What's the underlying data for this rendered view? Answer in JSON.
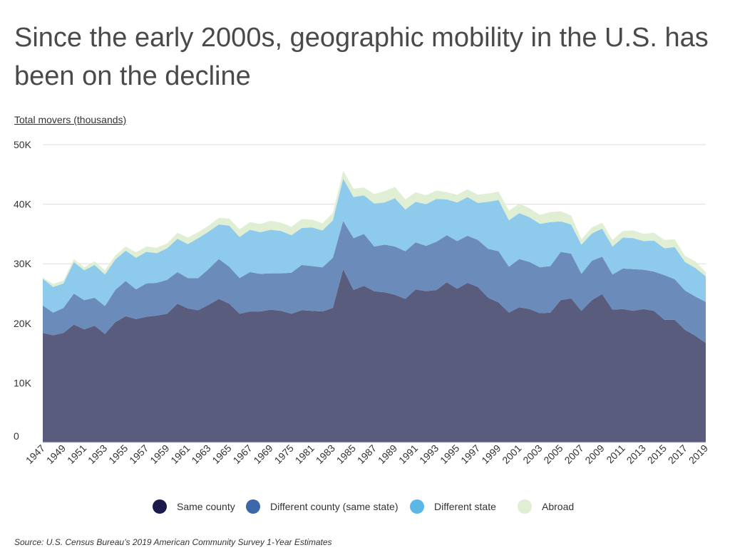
{
  "title": "Since the early 2000s, geographic mobility in the U.S. has been on the decline",
  "ylabel": "Total movers (thousands)",
  "source": "Source:  U.S. Census Bureau’s 2019 American Community Survey 1-Year Estimates",
  "chart_data": {
    "type": "area",
    "stacked": true,
    "ylim": [
      0,
      50000
    ],
    "yticks": [
      0,
      10000,
      20000,
      30000,
      40000,
      50000
    ],
    "ytick_labels": [
      "0",
      "10K",
      "20K",
      "30K",
      "40K",
      "50K"
    ],
    "xtick_labels": [
      "1947",
      "1949",
      "1951",
      "1953",
      "1955",
      "1957",
      "1959",
      "1961",
      "1963",
      "1965",
      "1967",
      "1969",
      "1975",
      "1981",
      "1983",
      "1985",
      "1987",
      "1989",
      "1991",
      "1993",
      "1995",
      "1997",
      "1999",
      "2001",
      "2003",
      "2005",
      "2007",
      "2009",
      "2011",
      "2013",
      "2015",
      "2017",
      "2019"
    ],
    "x": [
      "1947",
      "1948",
      "1949",
      "1950",
      "1951",
      "1952",
      "1953",
      "1954",
      "1955",
      "1956",
      "1957",
      "1958",
      "1959",
      "1960",
      "1961",
      "1962",
      "1963",
      "1964",
      "1965",
      "1966",
      "1967",
      "1968",
      "1969",
      "1970",
      "1975",
      "1980",
      "1981",
      "1982",
      "1983",
      "1984",
      "1985",
      "1986",
      "1987",
      "1988",
      "1989",
      "1990",
      "1991",
      "1992",
      "1993",
      "1994",
      "1995",
      "1996",
      "1997",
      "1998",
      "1999",
      "2000",
      "2001",
      "2002",
      "2003",
      "2004",
      "2005",
      "2006",
      "2007",
      "2008",
      "2009",
      "2010",
      "2011",
      "2012",
      "2013",
      "2014",
      "2015",
      "2016",
      "2017",
      "2018",
      "2019"
    ],
    "series": [
      {
        "name": "Same county",
        "color": "#5a5c7e",
        "values": [
          18400,
          18000,
          18400,
          19800,
          19000,
          19600,
          18200,
          20200,
          21200,
          20700,
          21100,
          21300,
          21600,
          23300,
          22500,
          22200,
          23100,
          24100,
          23300,
          21600,
          22000,
          22000,
          22300,
          22100,
          21600,
          22200,
          22100,
          22000,
          22600,
          29100,
          25600,
          26300,
          25400,
          25200,
          24800,
          24100,
          25700,
          25400,
          25600,
          26900,
          25800,
          26800,
          26100,
          24300,
          23500,
          21800,
          22700,
          22400,
          21700,
          21800,
          23900,
          24200,
          22100,
          23900,
          24900,
          22300,
          22400,
          22100,
          22400,
          22100,
          20600,
          20600,
          18900,
          17900,
          16700
        ]
      },
      {
        "name": "Different county (same state)",
        "color": "#6b8cba",
        "values": [
          4600,
          3800,
          4200,
          5200,
          4900,
          4700,
          4700,
          5400,
          5900,
          5000,
          5600,
          5500,
          5700,
          5300,
          5100,
          5400,
          6000,
          6700,
          6200,
          6000,
          6600,
          6300,
          6100,
          6300,
          6900,
          7600,
          7500,
          7400,
          8400,
          8100,
          8700,
          8700,
          7500,
          8000,
          8100,
          8000,
          7900,
          7600,
          8100,
          7900,
          8000,
          7900,
          7900,
          8200,
          8600,
          7700,
          8100,
          7900,
          7700,
          7800,
          8100,
          7500,
          6200,
          6600,
          6300,
          5900,
          6800,
          7000,
          6600,
          6600,
          7500,
          6800,
          6600,
          6600,
          6900
        ]
      },
      {
        "name": "Different state",
        "color": "#8dcaec",
        "values": [
          4500,
          4300,
          4100,
          5300,
          5000,
          5500,
          5300,
          5100,
          5100,
          5300,
          5300,
          5000,
          5300,
          5600,
          5700,
          6700,
          6300,
          5800,
          6900,
          6900,
          7100,
          7000,
          7300,
          7100,
          6300,
          6200,
          6500,
          6200,
          6300,
          7100,
          6900,
          6500,
          7200,
          7100,
          8100,
          7000,
          6800,
          7000,
          7200,
          6000,
          6500,
          6500,
          6200,
          7900,
          8600,
          7800,
          7700,
          7500,
          7300,
          7400,
          5100,
          4900,
          4900,
          4600,
          4700,
          4700,
          5200,
          5200,
          4800,
          5200,
          4500,
          5400,
          4800,
          4800,
          4300
        ]
      },
      {
        "name": "Abroad",
        "color": "#e0efd3",
        "values": [
          200,
          500,
          500,
          500,
          500,
          600,
          700,
          700,
          700,
          900,
          900,
          900,
          800,
          1000,
          1100,
          1000,
          1000,
          1100,
          1200,
          1300,
          1300,
          1400,
          1500,
          1400,
          1400,
          1500,
          1300,
          1200,
          1200,
          1300,
          1400,
          1300,
          1600,
          1900,
          1900,
          1700,
          1600,
          1500,
          1400,
          1200,
          1300,
          1300,
          1400,
          1400,
          1400,
          1600,
          1600,
          1500,
          1500,
          1700,
          1700,
          1500,
          900,
          1000,
          1000,
          1100,
          1100,
          1300,
          1200,
          1300,
          1400,
          1300,
          1000,
          1100,
          700
        ]
      }
    ],
    "legend_position": "bottom"
  }
}
